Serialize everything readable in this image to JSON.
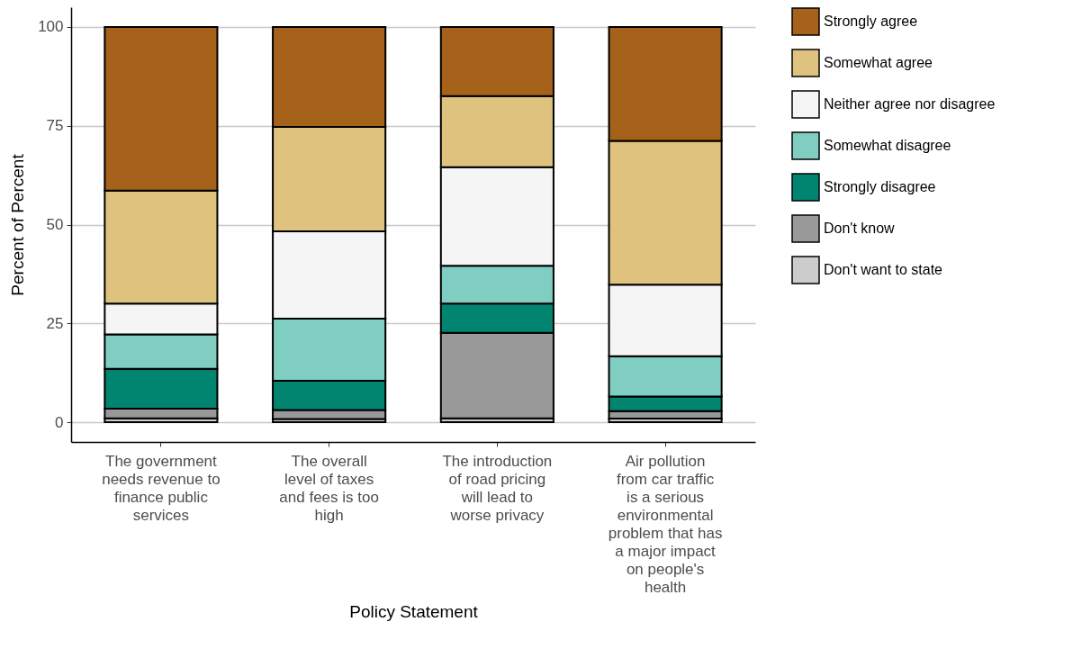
{
  "chart_data": {
    "type": "bar",
    "stacked": true,
    "xlabel": "Policy Statement",
    "ylabel": "Percent of Percent",
    "categories": [
      "The government needs revenue to finance public services",
      "The overall level of taxes and fees is too high",
      "The introduction of road pricing will lead to worse privacy",
      "Air pollution from car traffic is a serious environmental problem that has a major impact on people's health"
    ],
    "series": [
      {
        "name": "Don't want to state",
        "color": "#cccccc",
        "values": [
          1.0,
          0.8,
          1.0,
          0.9
        ]
      },
      {
        "name": "Don't know",
        "color": "#999999",
        "values": [
          2.4,
          2.3,
          21.6,
          1.9
        ]
      },
      {
        "name": "Strongly disagree",
        "color": "#018571",
        "values": [
          10.1,
          7.4,
          7.4,
          3.7
        ]
      },
      {
        "name": "Somewhat disagree",
        "color": "#80cdc1",
        "values": [
          8.7,
          15.7,
          9.6,
          10.2
        ]
      },
      {
        "name": "Neither agree nor disagree",
        "color": "#f5f5f5",
        "values": [
          7.8,
          22.1,
          24.9,
          18.1
        ]
      },
      {
        "name": "Somewhat agree",
        "color": "#dfc27d",
        "values": [
          28.6,
          26.4,
          18.0,
          36.4
        ]
      },
      {
        "name": "Strongly agree",
        "color": "#a6611a",
        "values": [
          41.4,
          25.3,
          17.5,
          28.8
        ]
      }
    ],
    "ylim": [
      -5,
      105
    ],
    "yticks": [
      0,
      25,
      50,
      75,
      100
    ],
    "grid": "y",
    "legend": "right"
  }
}
